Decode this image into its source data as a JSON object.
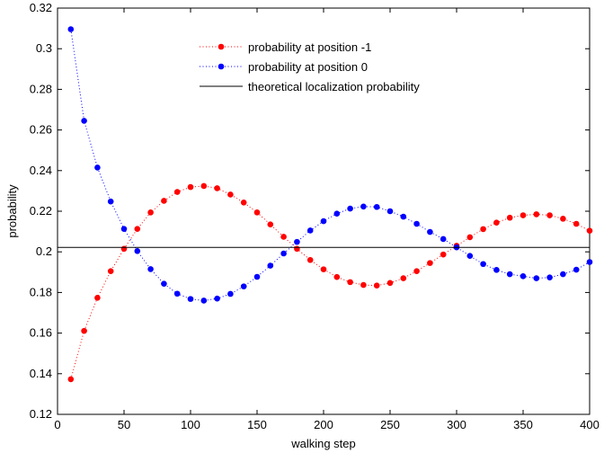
{
  "chart_data": {
    "type": "line",
    "title": "",
    "xlabel": "walking step",
    "ylabel": "probability",
    "xlim": [
      0,
      400
    ],
    "ylim": [
      0.12,
      0.32
    ],
    "xticks": [
      0,
      50,
      100,
      150,
      200,
      250,
      300,
      350,
      400
    ],
    "yticks": [
      0.12,
      0.14,
      0.16,
      0.18,
      0.2,
      0.22,
      0.24,
      0.26,
      0.28,
      0.3,
      0.32
    ],
    "ytick_labels": [
      "0.12",
      "0.14",
      "0.16",
      "0.18",
      "0.2",
      "0.22",
      "0.24",
      "0.26",
      "0.28",
      "0.3",
      "0.32"
    ],
    "grid": false,
    "legend_position": "top-center",
    "x": [
      10,
      20,
      30,
      40,
      50,
      60,
      70,
      80,
      90,
      100,
      110,
      120,
      130,
      140,
      150,
      160,
      170,
      180,
      190,
      200,
      210,
      220,
      230,
      240,
      250,
      260,
      270,
      280,
      290,
      300,
      310,
      320,
      330,
      340,
      350,
      360,
      370,
      380,
      390,
      400
    ],
    "series": [
      {
        "name": "probability at position -1",
        "color": "#ff0000",
        "style": "dotted-markers",
        "values": [
          0.1373,
          0.1611,
          0.1774,
          0.1905,
          0.2015,
          0.2113,
          0.2194,
          0.2251,
          0.2295,
          0.2319,
          0.2324,
          0.2313,
          0.2282,
          0.2243,
          0.2194,
          0.2135,
          0.2074,
          0.2015,
          0.196,
          0.1914,
          0.1876,
          0.1851,
          0.1837,
          0.1834,
          0.1847,
          0.187,
          0.1905,
          0.1945,
          0.1987,
          0.203,
          0.2072,
          0.2112,
          0.2144,
          0.2168,
          0.218,
          0.2185,
          0.218,
          0.2163,
          0.2138,
          0.2104
        ]
      },
      {
        "name": "probability at position 0",
        "color": "#0000ff",
        "style": "dotted-markers",
        "values": [
          0.3096,
          0.2645,
          0.2415,
          0.2248,
          0.2113,
          0.2004,
          0.1915,
          0.1843,
          0.1794,
          0.1768,
          0.176,
          0.177,
          0.1793,
          0.183,
          0.1877,
          0.1932,
          0.1992,
          0.2049,
          0.2105,
          0.2151,
          0.2188,
          0.2213,
          0.2223,
          0.2221,
          0.22,
          0.2173,
          0.2138,
          0.2098,
          0.2063,
          0.2022,
          0.198,
          0.194,
          0.1911,
          0.189,
          0.188,
          0.187,
          0.1874,
          0.189,
          0.1912,
          0.195
        ]
      },
      {
        "name": "theoretical localization probability",
        "color": "#000000",
        "style": "solid",
        "constant": 0.2022
      }
    ]
  }
}
